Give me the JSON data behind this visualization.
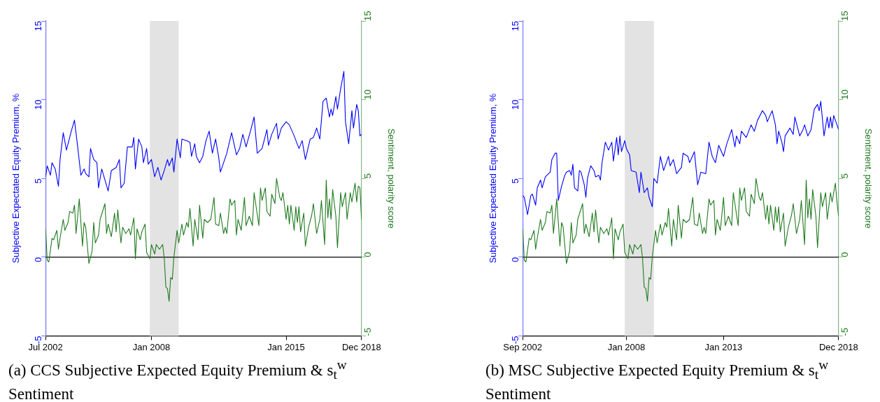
{
  "chart_data": [
    {
      "type": "line",
      "title": "(a) CCS Subjective Expected Equity Premium & s$_{t}$$^{w}$ Sentiment",
      "ylabel": "Subjective Expectated Equity Premium, %",
      "y2label": "Sentiment, polarity score",
      "xlim": [
        "2002-07",
        "2018-12"
      ],
      "xticks": [
        {
          "value": "2002-07",
          "label": "Jul 2002"
        },
        {
          "value": "2008-01",
          "label": "Jan 2008"
        },
        {
          "value": "2015-01",
          "label": "Jan 2015"
        },
        {
          "value": "2018-12",
          "label": "Dec 2018"
        }
      ],
      "ylim": [
        -5,
        15
      ],
      "yticks": [
        -5,
        0,
        5,
        10,
        15
      ],
      "y2lim": [
        -5,
        15
      ],
      "y2ticks": [
        -5,
        0,
        5,
        10,
        15
      ],
      "bands": [
        {
          "axis": "x",
          "from": "2007-12",
          "to": "2009-06",
          "color": "#e3e3e3"
        }
      ],
      "ref_lines": [
        {
          "axis": "y",
          "value": 0,
          "color": "#000000"
        }
      ],
      "series": [
        {
          "color": "#0000ff",
          "x": [
            "2002-07",
            "2002-08",
            "2002-10",
            "2002-11",
            "2003-01",
            "2003-03",
            "2003-04",
            "2003-06",
            "2003-08",
            "2003-11",
            "2004-01",
            "2004-03",
            "2004-05",
            "2004-07",
            "2004-08",
            "2004-10",
            "2004-11",
            "2005-01",
            "2005-03",
            "2005-04",
            "2005-06",
            "2005-08",
            "2005-10",
            "2005-12",
            "2006-03",
            "2006-05",
            "2006-06",
            "2006-08",
            "2006-10",
            "2007-01",
            "2007-02",
            "2007-03",
            "2007-05",
            "2007-07",
            "2007-08",
            "2007-10",
            "2007-11",
            "2008-01",
            "2008-03",
            "2008-05",
            "2008-07",
            "2008-09",
            "2008-11",
            "2008-12",
            "2009-02",
            "2009-03",
            "2009-05",
            "2009-07",
            "2009-08",
            "2009-11",
            "2010-01",
            "2010-02",
            "2010-04",
            "2010-05",
            "2010-07",
            "2010-09",
            "2010-11",
            "2011-01",
            "2011-03",
            "2011-05",
            "2011-07",
            "2011-08",
            "2011-10",
            "2011-12",
            "2012-03",
            "2012-06",
            "2012-08",
            "2012-10",
            "2012-12",
            "2013-03",
            "2013-05",
            "2013-07",
            "2013-10",
            "2014-01",
            "2014-02",
            "2014-04",
            "2014-07",
            "2014-08",
            "2014-10",
            "2015-01",
            "2015-03",
            "2015-06",
            "2015-09",
            "2015-11",
            "2016-01",
            "2016-04",
            "2016-06",
            "2016-08",
            "2016-10",
            "2016-12",
            "2017-02",
            "2017-04",
            "2017-05",
            "2017-06",
            "2017-08",
            "2017-09",
            "2017-11",
            "2018-01",
            "2018-02",
            "2018-04",
            "2018-06",
            "2018-07",
            "2018-09",
            "2018-10",
            "2018-11",
            "2018-12"
          ],
          "values": [
            5.1,
            5.8,
            5.2,
            6.0,
            5.6,
            4.5,
            6.2,
            7.9,
            6.8,
            8.0,
            8.7,
            7.0,
            5.2,
            5.6,
            5.3,
            5.1,
            6.9,
            6.2,
            6.0,
            4.4,
            5.6,
            4.9,
            4.2,
            5.5,
            5.7,
            6.2,
            4.4,
            4.7,
            7.0,
            7.0,
            7.6,
            5.6,
            7.5,
            7.0,
            6.0,
            6.9,
            5.9,
            6.2,
            5.1,
            5.7,
            4.9,
            5.5,
            6.2,
            5.8,
            6.3,
            5.4,
            7.5,
            6.3,
            7.5,
            7.4,
            7.3,
            6.4,
            7.2,
            6.4,
            6.0,
            6.4,
            7.4,
            8.0,
            6.6,
            7.5,
            6.3,
            5.4,
            6.0,
            6.6,
            7.9,
            6.5,
            6.9,
            7.8,
            7.0,
            8.1,
            8.9,
            6.6,
            6.9,
            8.1,
            7.1,
            7.8,
            8.5,
            7.5,
            8.2,
            8.6,
            8.4,
            7.7,
            6.9,
            7.4,
            6.2,
            7.5,
            7.6,
            8.2,
            7.5,
            9.9,
            10.1,
            8.9,
            9.4,
            9.0,
            10.2,
            9.4,
            10.7,
            11.8,
            8.6,
            7.2,
            9.3,
            8.2,
            9.7,
            9.3,
            7.7,
            7.8
          ]
        },
        {
          "color": "#1f7a1f",
          "axis": "y2",
          "x": [
            "2002-07",
            "2002-08",
            "2002-09",
            "2002-11",
            "2002-12",
            "2003-02",
            "2003-03",
            "2003-04",
            "2003-06",
            "2003-07",
            "2003-09",
            "2003-10",
            "2003-12",
            "2004-01",
            "2004-02",
            "2004-04",
            "2004-06",
            "2004-07",
            "2004-08",
            "2004-10",
            "2004-12",
            "2005-01",
            "2005-02",
            "2005-04",
            "2005-05",
            "2005-08",
            "2005-09",
            "2005-10",
            "2005-12",
            "2006-02",
            "2006-03",
            "2006-04",
            "2006-06",
            "2006-07",
            "2006-09",
            "2006-11",
            "2006-12",
            "2007-02",
            "2007-03",
            "2007-04",
            "2007-06",
            "2007-07",
            "2007-09",
            "2007-10",
            "2007-12",
            "2008-01",
            "2008-03",
            "2008-04",
            "2008-06",
            "2008-08",
            "2008-09",
            "2008-10",
            "2008-11",
            "2008-12",
            "2009-01",
            "2009-02",
            "2009-03",
            "2009-05",
            "2009-06",
            "2009-08",
            "2009-09",
            "2009-11",
            "2009-12",
            "2010-01",
            "2010-03",
            "2010-04",
            "2010-06",
            "2010-07",
            "2010-09",
            "2010-10",
            "2010-12",
            "2011-02",
            "2011-04",
            "2011-05",
            "2011-07",
            "2011-08",
            "2011-10",
            "2011-11",
            "2011-12",
            "2012-02",
            "2012-03",
            "2012-05",
            "2012-06",
            "2012-07",
            "2012-09",
            "2012-11",
            "2012-12",
            "2013-02",
            "2013-04",
            "2013-05",
            "2013-08",
            "2013-09",
            "2013-10",
            "2013-12",
            "2014-01",
            "2014-03",
            "2014-04",
            "2014-06",
            "2014-07",
            "2014-09",
            "2014-10",
            "2014-11",
            "2015-01",
            "2015-02",
            "2015-03",
            "2015-04",
            "2015-06",
            "2015-07",
            "2015-08",
            "2015-09",
            "2015-10",
            "2015-12",
            "2016-01",
            "2016-03",
            "2016-05",
            "2016-06",
            "2016-08",
            "2016-10",
            "2016-11",
            "2017-01",
            "2017-02",
            "2017-03",
            "2017-04",
            "2017-05",
            "2017-06",
            "2017-08",
            "2017-09",
            "2017-11",
            "2017-12",
            "2018-02",
            "2018-03",
            "2018-05",
            "2018-06",
            "2018-08",
            "2018-09",
            "2018-10",
            "2018-11",
            "2018-12"
          ],
          "values": [
            1.8,
            -0.2,
            -0.3,
            1.2,
            1.1,
            1.7,
            0.5,
            1.2,
            2.4,
            1.7,
            2.2,
            2.9,
            2.8,
            3.3,
            1.5,
            3.7,
            0.7,
            2.2,
            1.9,
            -0.4,
            0.4,
            2.2,
            0.9,
            1.4,
            2.4,
            3.4,
            1.5,
            2.1,
            1.3,
            2.8,
            1.6,
            3.0,
            0.9,
            1.9,
            1.5,
            1.8,
            1.4,
            2.5,
            -0.1,
            1.8,
            1.1,
            1.6,
            2.1,
            0.3,
            -0.1,
            0.8,
            0.2,
            0.8,
            0.5,
            0.8,
            -0.1,
            -1.9,
            -2.0,
            -2.8,
            -1.3,
            -1.4,
            0.0,
            1.7,
            0.9,
            2.1,
            1.4,
            2.2,
            1.9,
            3.1,
            0.7,
            2.4,
            1.1,
            3.3,
            1.2,
            2.4,
            2.2,
            2.4,
            3.8,
            2.1,
            2.0,
            2.8,
            1.5,
            1.9,
            1.5,
            3.7,
            3.3,
            3.6,
            1.4,
            2.4,
            1.7,
            3.8,
            2.0,
            2.6,
            2.0,
            4.1,
            2.0,
            4.4,
            3.6,
            4.4,
            2.9,
            2.6,
            4.0,
            3.4,
            5.0,
            3.8,
            3.6,
            4.1,
            2.4,
            3.3,
            2.1,
            3.3,
            1.7,
            3.2,
            2.2,
            3.2,
            1.6,
            2.8,
            0.7,
            1.9,
            2.7,
            3.4,
            1.5,
            2.4,
            3.6,
            0.8,
            4.9,
            2.5,
            3.7,
            2.4,
            4.3,
            2.6,
            0.6,
            4.1,
            3.2,
            4.1,
            2.4,
            4.1,
            3.5,
            4.7,
            3.5,
            4.5,
            4.4,
            2.4
          ]
        }
      ]
    },
    {
      "type": "line",
      "title": "(b) MSC Subjective Expected Equity Premium & s$_{t}$$^{w}$ Sentiment",
      "ylabel": "Subjective Expectated Equity Premium, %",
      "y2label": "Sentiment, polarity score",
      "xlim": [
        "2002-09",
        "2018-12"
      ],
      "xticks": [
        {
          "value": "2002-09",
          "label": "Sep 2002"
        },
        {
          "value": "2008-01",
          "label": "Jan 2008"
        },
        {
          "value": "2013-01",
          "label": "Jan 2013"
        },
        {
          "value": "2018-12",
          "label": "Dec 2018"
        }
      ],
      "ylim": [
        -5,
        15
      ],
      "yticks": [
        -5,
        0,
        5,
        10,
        15
      ],
      "y2lim": [
        -5,
        15
      ],
      "y2ticks": [
        -5,
        0,
        5,
        10,
        15
      ],
      "bands": [
        {
          "axis": "x",
          "from": "2007-12",
          "to": "2009-06",
          "color": "#e3e3e3"
        }
      ],
      "ref_lines": [
        {
          "axis": "y",
          "value": 0,
          "color": "#000000"
        }
      ],
      "series": [
        {
          "color": "#0000ff",
          "x": [
            "2002-09",
            "2002-10",
            "2002-12",
            "2003-02",
            "2003-03",
            "2003-05",
            "2003-06",
            "2003-08",
            "2003-09",
            "2003-11",
            "2003-12",
            "2004-02",
            "2004-03",
            "2004-05",
            "2004-06",
            "2004-07",
            "2004-09",
            "2004-11",
            "2004-12",
            "2005-02",
            "2005-03",
            "2005-04",
            "2005-05",
            "2005-07",
            "2005-08",
            "2005-09",
            "2005-11",
            "2005-12",
            "2006-01",
            "2006-03",
            "2006-05",
            "2006-06",
            "2006-08",
            "2006-09",
            "2006-10",
            "2006-12",
            "2007-02",
            "2007-04",
            "2007-05",
            "2007-07",
            "2007-08",
            "2007-09",
            "2007-10",
            "2007-12",
            "2008-01",
            "2008-03",
            "2008-04",
            "2008-07",
            "2008-09",
            "2008-10",
            "2008-12",
            "2009-02",
            "2009-03",
            "2009-05",
            "2009-06",
            "2009-08",
            "2009-10",
            "2009-12",
            "2010-03",
            "2010-04",
            "2010-06",
            "2010-08",
            "2010-11",
            "2010-12",
            "2011-03",
            "2011-04",
            "2011-07",
            "2011-09",
            "2011-11",
            "2012-02",
            "2012-04",
            "2012-06",
            "2012-08",
            "2012-10",
            "2013-01",
            "2013-03",
            "2013-06",
            "2013-08",
            "2013-09",
            "2013-11",
            "2013-12",
            "2014-03",
            "2014-06",
            "2014-08",
            "2014-10",
            "2015-01",
            "2015-03",
            "2015-04",
            "2015-07",
            "2015-09",
            "2015-10",
            "2015-11",
            "2016-01",
            "2016-02",
            "2016-03",
            "2016-06",
            "2016-08",
            "2016-09",
            "2016-12",
            "2017-02",
            "2017-03",
            "2017-05",
            "2017-07",
            "2017-09",
            "2017-11",
            "2017-12",
            "2018-01",
            "2018-03",
            "2018-05",
            "2018-06",
            "2018-07",
            "2018-08",
            "2018-09",
            "2018-11",
            "2018-12"
          ],
          "values": [
            3.9,
            3.8,
            2.7,
            3.9,
            4.0,
            3.3,
            4.4,
            4.9,
            4.4,
            5.1,
            5.2,
            5.4,
            6.2,
            6.6,
            6.6,
            3.6,
            4.5,
            5.2,
            5.4,
            5.5,
            5.2,
            5.9,
            4.4,
            4.2,
            5.5,
            5.4,
            4.6,
            3.8,
            5.0,
            5.8,
            5.5,
            5.1,
            5.2,
            4.9,
            6.0,
            7.3,
            6.8,
            7.3,
            6.1,
            7.6,
            6.5,
            7.7,
            6.7,
            7.4,
            6.9,
            6.5,
            5.5,
            5.4,
            4.1,
            5.4,
            4.1,
            4.4,
            3.8,
            3.2,
            5.0,
            4.7,
            6.4,
            5.5,
            6.4,
            5.8,
            6.2,
            5.3,
            5.7,
            6.6,
            6.4,
            6.0,
            6.7,
            4.6,
            5.4,
            5.3,
            7.3,
            6.4,
            6.0,
            7.1,
            6.4,
            7.2,
            8.1,
            7.0,
            7.7,
            7.2,
            8.0,
            7.6,
            8.4,
            8.0,
            8.7,
            9.3,
            9.0,
            8.6,
            9.3,
            8.4,
            7.2,
            8.0,
            7.3,
            6.7,
            7.7,
            8.2,
            7.8,
            8.9,
            7.7,
            8.1,
            8.4,
            7.7,
            8.1,
            9.4,
            9.7,
            9.3,
            9.9,
            7.7,
            8.9,
            8.2,
            8.9,
            8.2,
            9.0,
            8.4,
            8.1
          ]
        },
        {
          "color": "#1f7a1f",
          "axis": "y2",
          "x": [
            "2002-09",
            "2002-10",
            "2002-11",
            "2003-01",
            "2003-02",
            "2003-04",
            "2003-05",
            "2003-06",
            "2003-08",
            "2003-09",
            "2003-11",
            "2003-12",
            "2004-02",
            "2004-03",
            "2004-04",
            "2004-06",
            "2004-08",
            "2004-09",
            "2004-10",
            "2004-12",
            "2005-02",
            "2005-03",
            "2005-04",
            "2005-06",
            "2005-07",
            "2005-10",
            "2005-11",
            "2005-12",
            "2006-02",
            "2006-04",
            "2006-05",
            "2006-06",
            "2006-08",
            "2006-09",
            "2006-11",
            "2007-01",
            "2007-02",
            "2007-04",
            "2007-05",
            "2007-06",
            "2007-08",
            "2007-09",
            "2007-11",
            "2007-12",
            "2008-02",
            "2008-03",
            "2008-05",
            "2008-06",
            "2008-08",
            "2008-10",
            "2008-11",
            "2008-12",
            "2009-01",
            "2009-02",
            "2009-03",
            "2009-04",
            "2009-05",
            "2009-07",
            "2009-08",
            "2009-10",
            "2009-11",
            "2010-01",
            "2010-02",
            "2010-03",
            "2010-05",
            "2010-06",
            "2010-08",
            "2010-09",
            "2010-11",
            "2010-12",
            "2011-02",
            "2011-04",
            "2011-06",
            "2011-07",
            "2011-09",
            "2011-10",
            "2011-12",
            "2012-01",
            "2012-02",
            "2012-04",
            "2012-05",
            "2012-07",
            "2012-08",
            "2012-09",
            "2012-11",
            "2013-01",
            "2013-02",
            "2013-04",
            "2013-06",
            "2013-07",
            "2013-10",
            "2013-11",
            "2013-12",
            "2014-02",
            "2014-03",
            "2014-05",
            "2014-06",
            "2014-08",
            "2014-09",
            "2014-11",
            "2014-12",
            "2015-01",
            "2015-03",
            "2015-04",
            "2015-05",
            "2015-06",
            "2015-08",
            "2015-09",
            "2015-10",
            "2015-11",
            "2015-12",
            "2016-02",
            "2016-03",
            "2016-05",
            "2016-07",
            "2016-08",
            "2016-10",
            "2016-12",
            "2017-01",
            "2017-03",
            "2017-04",
            "2017-05",
            "2017-06",
            "2017-07",
            "2017-08",
            "2017-10",
            "2017-11",
            "2018-01",
            "2018-02",
            "2018-04",
            "2018-05",
            "2018-07",
            "2018-08",
            "2018-10",
            "2018-11",
            "2018-12"
          ],
          "values": [
            1.8,
            -0.2,
            -0.3,
            1.2,
            1.1,
            1.7,
            0.5,
            1.2,
            2.4,
            1.7,
            2.2,
            2.9,
            2.8,
            3.3,
            1.5,
            3.7,
            0.7,
            2.2,
            1.9,
            -0.4,
            0.4,
            2.2,
            0.9,
            1.4,
            2.4,
            3.4,
            1.5,
            2.1,
            1.3,
            2.8,
            1.6,
            3.0,
            0.9,
            1.9,
            1.5,
            1.8,
            1.4,
            2.5,
            -0.1,
            1.8,
            1.1,
            1.6,
            2.1,
            0.3,
            -0.1,
            0.8,
            0.2,
            0.8,
            0.5,
            0.8,
            -0.1,
            -1.9,
            -2.0,
            -2.8,
            -1.3,
            -1.4,
            0.0,
            1.7,
            0.9,
            2.1,
            1.4,
            2.2,
            1.9,
            3.1,
            0.7,
            2.4,
            1.1,
            3.3,
            1.2,
            2.4,
            2.2,
            2.4,
            3.8,
            2.1,
            2.0,
            2.8,
            1.5,
            1.9,
            1.5,
            3.7,
            3.3,
            3.6,
            1.4,
            2.4,
            1.7,
            3.8,
            2.0,
            2.6,
            2.0,
            4.1,
            2.0,
            4.4,
            3.6,
            4.4,
            2.9,
            2.6,
            4.0,
            3.4,
            5.0,
            3.8,
            3.6,
            4.1,
            2.4,
            3.3,
            2.1,
            3.3,
            1.7,
            3.2,
            2.2,
            3.2,
            1.6,
            2.8,
            0.7,
            1.9,
            2.7,
            3.4,
            1.5,
            2.4,
            3.6,
            0.8,
            4.9,
            2.5,
            3.7,
            2.4,
            4.3,
            2.6,
            0.6,
            4.1,
            3.2,
            4.1,
            2.4,
            4.1,
            3.5,
            4.7,
            3.5,
            2.6
          ]
        }
      ]
    }
  ]
}
